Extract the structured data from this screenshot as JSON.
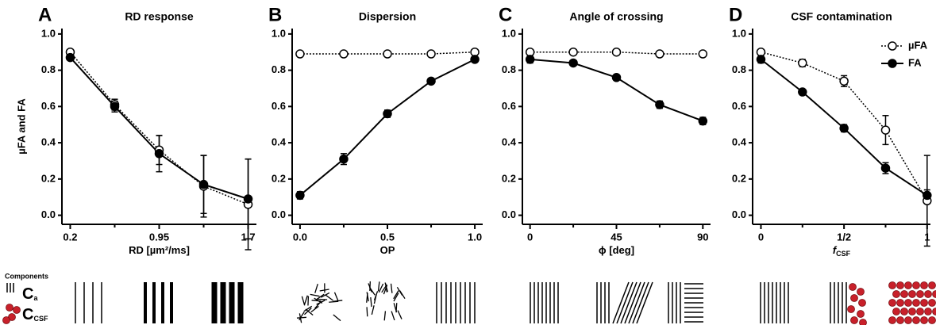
{
  "chart_data": [
    {
      "type": "line",
      "panel": "A",
      "title": "RD response",
      "ylabel": "µFA and FA",
      "xlabel": "RD [µm²/ms]",
      "x": [
        0.2,
        0.575,
        0.95,
        1.325,
        1.7
      ],
      "xlim": [
        0.13,
        1.77
      ],
      "xticks": [
        0.2,
        0.95,
        1.7
      ],
      "xminorticks": [
        0.575,
        1.325
      ],
      "ylim": [
        -0.05,
        1.03
      ],
      "yticks": [
        {
          "value": 0,
          "label": "0.0"
        },
        0.2,
        0.4,
        0.6,
        0.8,
        {
          "value": 1,
          "label": "1.0"
        }
      ],
      "series": [
        {
          "color": "#000000",
          "marker_fill": "#ffffff",
          "linestyle": "dotted",
          "values": [
            0.9,
            0.61,
            0.36,
            0.16,
            0.06
          ],
          "errors": [
            0.01,
            0.03,
            0.08,
            0.17,
            0.25
          ]
        },
        {
          "color": "#000000",
          "marker_fill": "#000000",
          "linestyle": "solid",
          "values": [
            0.87,
            0.6,
            0.34,
            0.17,
            0.09
          ],
          "errors": [
            0.01,
            0.03,
            0.1,
            0.16,
            0.22
          ]
        }
      ]
    },
    {
      "type": "line",
      "panel": "B",
      "title": "Dispersion",
      "xlabel": "OP",
      "x": [
        0,
        0.25,
        0.5,
        0.75,
        1
      ],
      "xlim": [
        -0.045,
        1.045
      ],
      "xticks": [
        {
          "value": 0,
          "label": "0.0"
        },
        0.5,
        {
          "value": 1,
          "label": "1.0"
        }
      ],
      "xminorticks": [
        0.25,
        0.75
      ],
      "ylim": [
        -0.05,
        1.03
      ],
      "yticks": [
        {
          "value": 0,
          "label": "0.0"
        },
        0.2,
        0.4,
        0.6,
        0.8,
        {
          "value": 1,
          "label": "1.0"
        }
      ],
      "series": [
        {
          "color": "#000000",
          "marker_fill": "#ffffff",
          "linestyle": "dotted",
          "values": [
            0.89,
            0.89,
            0.89,
            0.89,
            0.9
          ],
          "errors": [
            0.01,
            0.01,
            0.01,
            0.01,
            0.01
          ]
        },
        {
          "color": "#000000",
          "marker_fill": "#000000",
          "linestyle": "solid",
          "values": [
            0.11,
            0.31,
            0.56,
            0.74,
            0.86
          ],
          "errors": [
            0.02,
            0.03,
            0.02,
            0.01,
            0.01
          ]
        }
      ]
    },
    {
      "type": "line",
      "panel": "C",
      "title": "Angle of crossing",
      "xlabel": "ϕ [deg]",
      "x": [
        0,
        22.5,
        45,
        67.5,
        90
      ],
      "xlim": [
        -4,
        94
      ],
      "xticks": [
        0,
        45,
        90
      ],
      "xminorticks": [
        22.5,
        67.5
      ],
      "ylim": [
        -0.05,
        1.03
      ],
      "yticks": [
        {
          "value": 0,
          "label": "0.0"
        },
        0.2,
        0.4,
        0.6,
        0.8,
        {
          "value": 1,
          "label": "1.0"
        }
      ],
      "series": [
        {
          "color": "#000000",
          "marker_fill": "#ffffff",
          "linestyle": "dotted",
          "values": [
            0.9,
            0.9,
            0.9,
            0.89,
            0.89
          ],
          "errors": [
            0.01,
            0.01,
            0.01,
            0.01,
            0.01
          ]
        },
        {
          "color": "#000000",
          "marker_fill": "#000000",
          "linestyle": "solid",
          "values": [
            0.86,
            0.84,
            0.76,
            0.61,
            0.52
          ],
          "errors": [
            0.02,
            0.01,
            0.01,
            0.02,
            0.02
          ]
        }
      ]
    },
    {
      "type": "line",
      "panel": "D",
      "title": "CSF contamination",
      "xlabel": "f",
      "xlabel_sub": "CSF",
      "x": [
        0,
        0.25,
        0.5,
        0.75,
        1
      ],
      "xlim": [
        -0.05,
        1.02
      ],
      "xticks": [
        0,
        {
          "value": 0.5,
          "label": "1/2"
        },
        1
      ],
      "xminorticks": [
        0.25,
        0.75
      ],
      "ylim": [
        -0.05,
        1.03
      ],
      "yticks": [
        {
          "value": 0,
          "label": "0.0"
        },
        0.2,
        0.4,
        0.6,
        0.8,
        {
          "value": 1,
          "label": "1.0"
        }
      ],
      "legend": "upper right",
      "series": [
        {
          "name": "µFA",
          "color": "#000000",
          "marker_fill": "#ffffff",
          "linestyle": "dotted",
          "values": [
            0.9,
            0.84,
            0.74,
            0.47,
            0.08
          ],
          "errors": [
            0.01,
            0.02,
            0.03,
            0.08,
            0.25
          ]
        },
        {
          "name": "FA",
          "color": "#000000",
          "marker_fill": "#000000",
          "linestyle": "solid",
          "values": [
            0.86,
            0.68,
            0.48,
            0.26,
            0.11
          ],
          "errors": [
            0.02,
            0.01,
            0.02,
            0.03,
            0.03
          ]
        }
      ]
    }
  ],
  "schematic": {
    "title": "Components",
    "items": [
      {
        "symbol": "C",
        "sub": "a"
      },
      {
        "symbol": "C",
        "sub": "CSF"
      }
    ]
  }
}
